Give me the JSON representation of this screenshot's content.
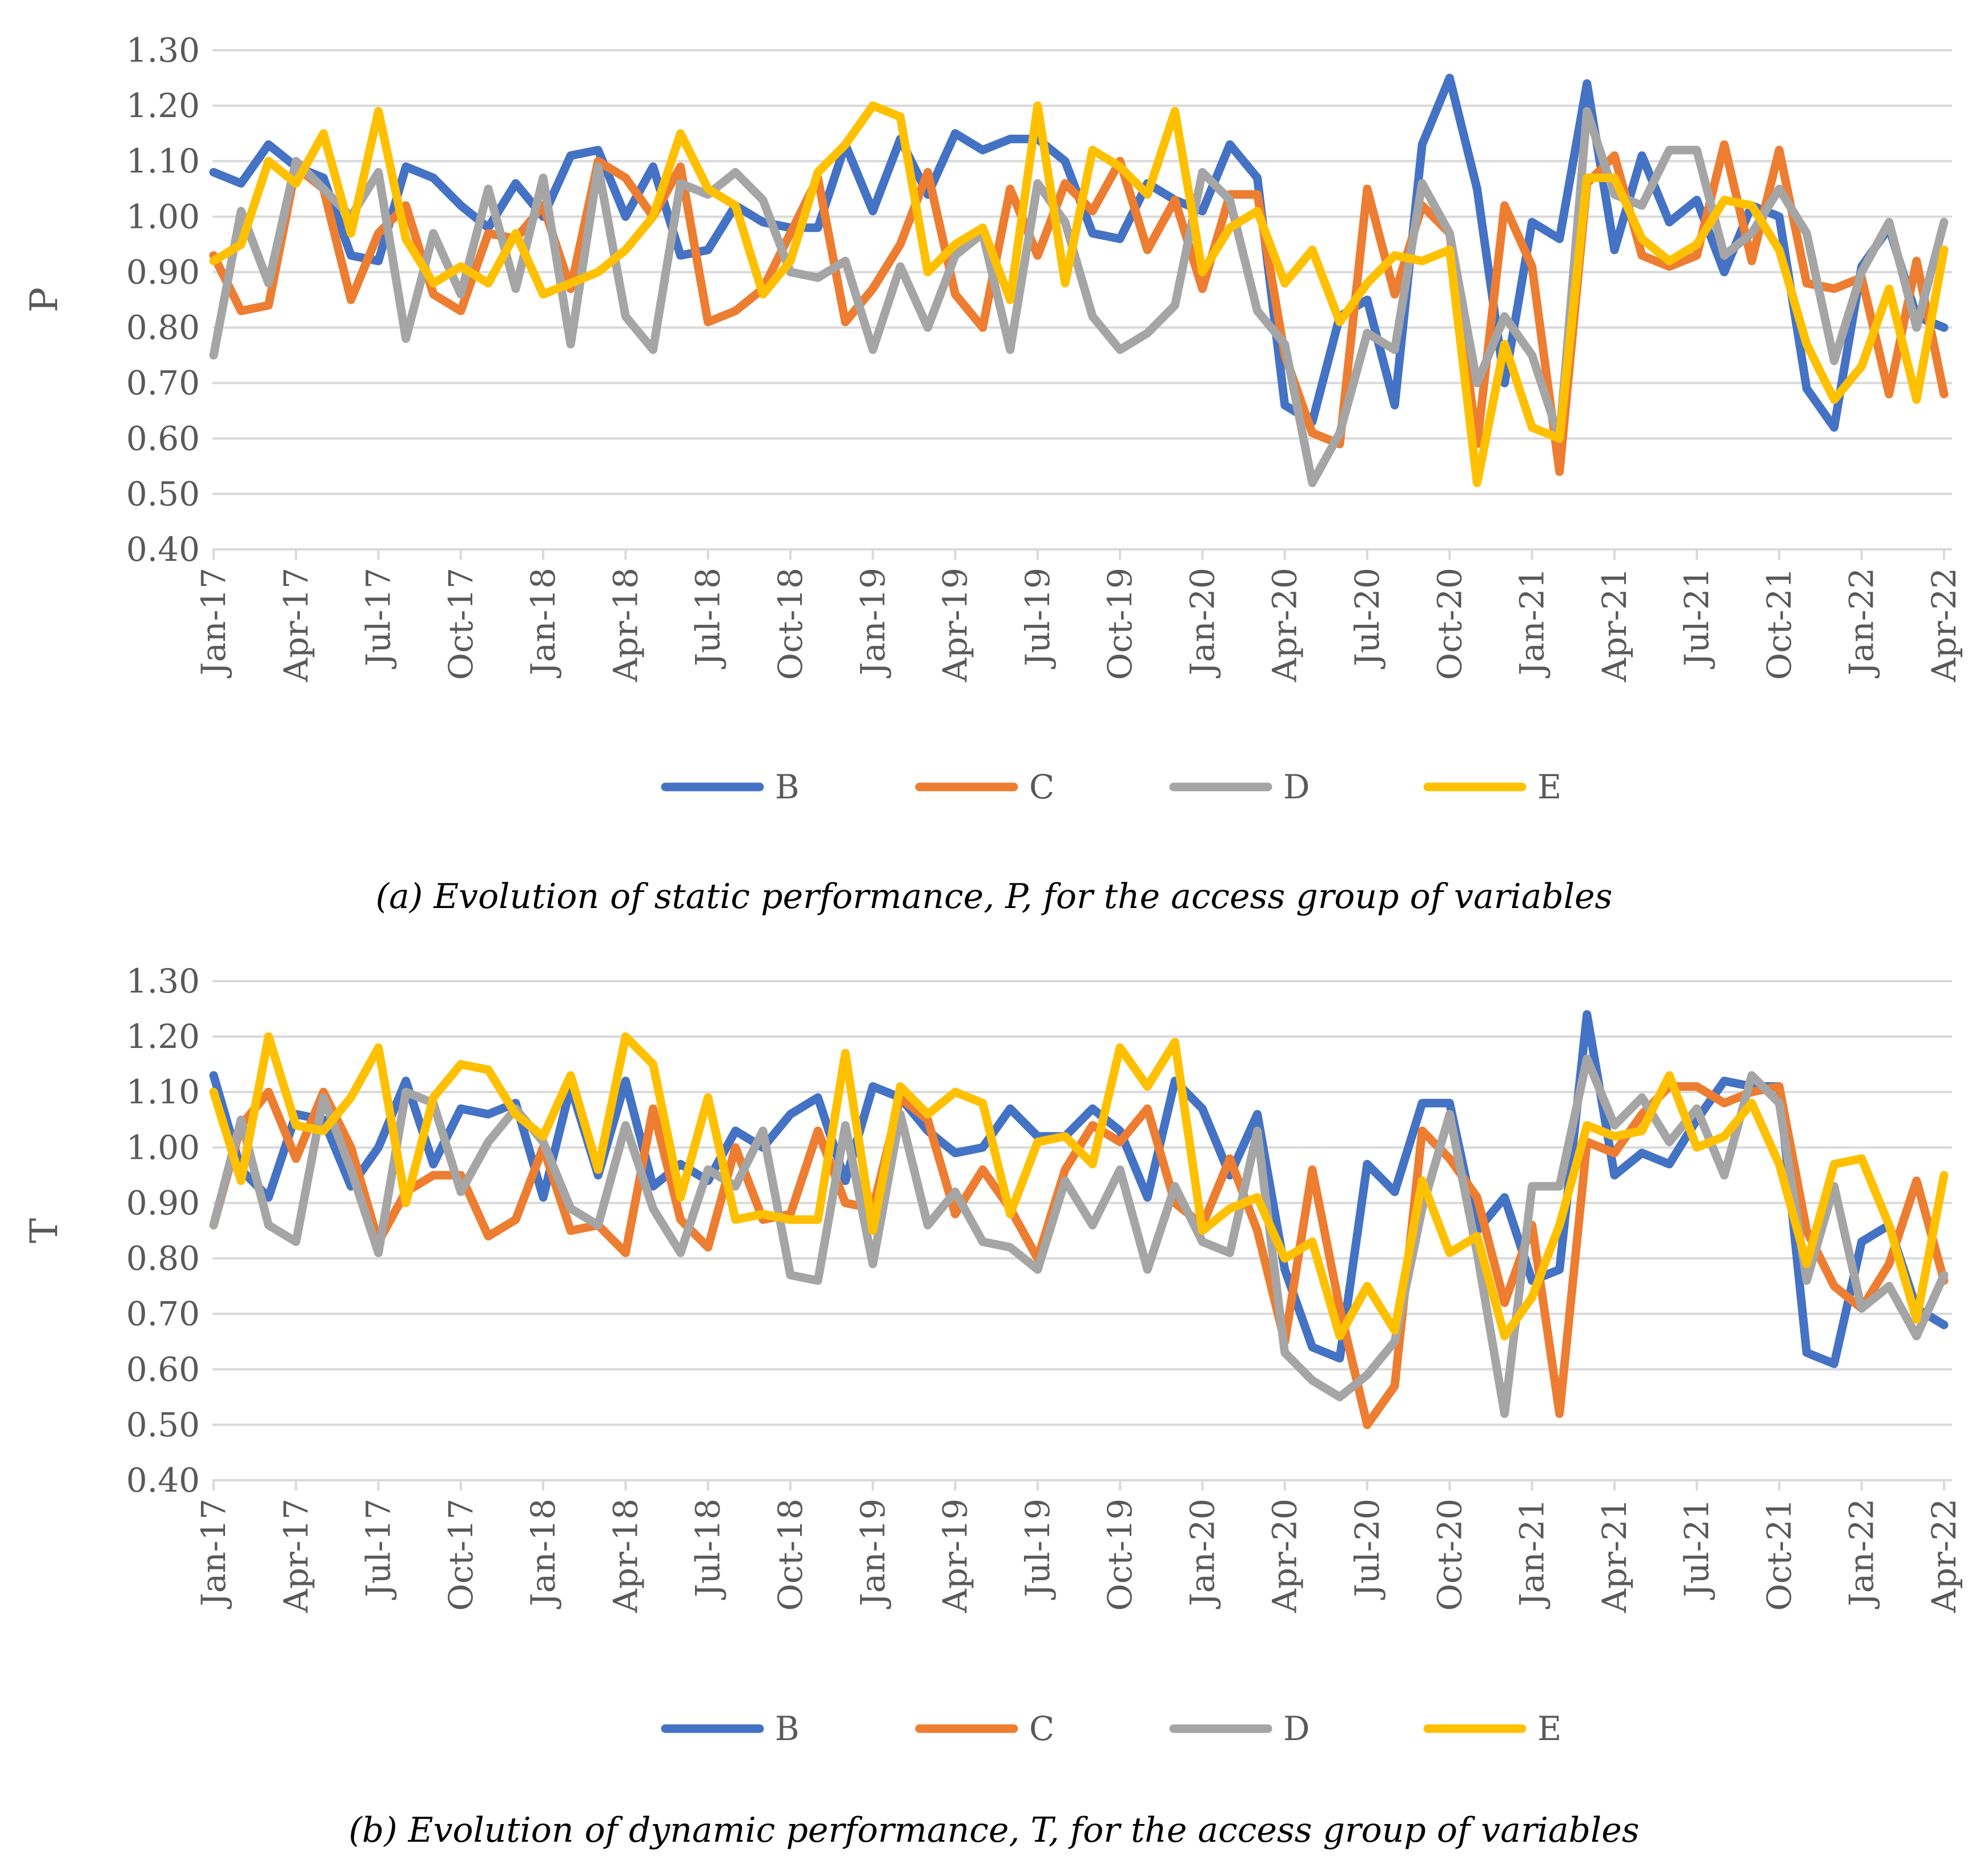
{
  "colors": {
    "B": "#4472C4",
    "C": "#ED7D31",
    "D": "#A5A5A5",
    "E": "#FFC000",
    "grid": "#D9D9D9",
    "text": "#595959"
  },
  "chart_data": [
    {
      "type": "line",
      "caption": "(a) Evolution of static performance, P, for the access group of variables",
      "ylabel": "P",
      "ylim": [
        0.4,
        1.3
      ],
      "yticks": [
        "0.40",
        "0.50",
        "0.60",
        "0.70",
        "0.80",
        "0.90",
        "1.00",
        "1.10",
        "1.20",
        "1.30"
      ],
      "x": [
        "Jan-17",
        "Feb-17",
        "Mar-17",
        "Apr-17",
        "May-17",
        "Jun-17",
        "Jul-17",
        "Aug-17",
        "Sep-17",
        "Oct-17",
        "Nov-17",
        "Dec-17",
        "Jan-18",
        "Feb-18",
        "Mar-18",
        "Apr-18",
        "May-18",
        "Jun-18",
        "Jul-18",
        "Aug-18",
        "Sep-18",
        "Oct-18",
        "Nov-18",
        "Dec-18",
        "Jan-19",
        "Feb-19",
        "Mar-19",
        "Apr-19",
        "May-19",
        "Jun-19",
        "Jul-19",
        "Aug-19",
        "Sep-19",
        "Oct-19",
        "Nov-19",
        "Dec-19",
        "Jan-20",
        "Feb-20",
        "Mar-20",
        "Apr-20",
        "May-20",
        "Jun-20",
        "Jul-20",
        "Aug-20",
        "Sep-20",
        "Oct-20",
        "Nov-20",
        "Dec-20",
        "Jan-21",
        "Feb-21",
        "Mar-21",
        "Apr-21",
        "May-21",
        "Jun-21",
        "Jul-21",
        "Aug-21",
        "Sep-21",
        "Oct-21",
        "Nov-21",
        "Dec-21",
        "Jan-22",
        "Feb-22",
        "Mar-22",
        "Apr-22"
      ],
      "xtick_labels": [
        "Jan-17",
        "Apr-17",
        "Jul-17",
        "Oct-17",
        "Jan-18",
        "Apr-18",
        "Jul-18",
        "Oct-18",
        "Jan-19",
        "Apr-19",
        "Jul-19",
        "Oct-19",
        "Jan-20",
        "Apr-20",
        "Jul-20",
        "Oct-20",
        "Jan-21",
        "Apr-21",
        "Jul-21",
        "Oct-21",
        "Jan-22",
        "Apr-22"
      ],
      "series": [
        {
          "name": "B",
          "values": [
            1.08,
            1.06,
            1.13,
            1.09,
            1.07,
            0.93,
            0.92,
            1.09,
            1.07,
            1.02,
            0.98,
            1.06,
            1.0,
            1.11,
            1.12,
            1.0,
            1.09,
            0.93,
            0.94,
            1.02,
            0.99,
            0.98,
            0.98,
            1.13,
            1.01,
            1.14,
            1.04,
            1.15,
            1.12,
            1.14,
            1.14,
            1.1,
            0.97,
            0.96,
            1.06,
            1.03,
            1.01,
            1.13,
            1.07,
            0.66,
            0.63,
            0.82,
            0.85,
            0.66,
            1.13,
            1.25,
            1.05,
            0.7,
            0.99,
            0.96,
            1.24,
            0.94,
            1.11,
            0.99,
            1.03,
            0.9,
            1.02,
            1.0,
            0.69,
            0.62,
            0.91,
            0.98,
            0.82,
            0.8
          ]
        },
        {
          "name": "C",
          "values": [
            0.93,
            0.83,
            0.84,
            1.09,
            1.05,
            0.85,
            0.97,
            1.02,
            0.86,
            0.83,
            0.97,
            0.96,
            1.02,
            0.87,
            1.1,
            1.07,
            1.0,
            1.09,
            0.81,
            0.83,
            0.87,
            0.97,
            1.07,
            0.81,
            0.87,
            0.95,
            1.08,
            0.86,
            0.8,
            1.05,
            0.93,
            1.06,
            1.01,
            1.1,
            0.94,
            1.03,
            0.87,
            1.04,
            1.04,
            0.75,
            0.61,
            0.59,
            1.05,
            0.86,
            1.02,
            0.97,
            0.59,
            1.02,
            0.91,
            0.54,
            1.06,
            1.11,
            0.93,
            0.91,
            0.93,
            1.13,
            0.92,
            1.12,
            0.88,
            0.87,
            0.89,
            0.68,
            0.92,
            0.68
          ]
        },
        {
          "name": "D",
          "values": [
            0.75,
            1.01,
            0.88,
            1.1,
            1.05,
            1.0,
            1.08,
            0.78,
            0.97,
            0.86,
            1.05,
            0.87,
            1.07,
            0.77,
            1.09,
            0.82,
            0.76,
            1.06,
            1.04,
            1.08,
            1.03,
            0.9,
            0.89,
            0.92,
            0.76,
            0.91,
            0.8,
            0.93,
            0.97,
            0.76,
            1.06,
            0.99,
            0.82,
            0.76,
            0.79,
            0.84,
            1.08,
            1.03,
            0.83,
            0.77,
            0.52,
            0.61,
            0.79,
            0.76,
            1.06,
            0.97,
            0.7,
            0.82,
            0.75,
            0.6,
            1.19,
            1.04,
            1.02,
            1.12,
            1.12,
            0.93,
            0.97,
            1.05,
            0.97,
            0.74,
            0.9,
            0.99,
            0.8,
            0.99
          ]
        },
        {
          "name": "E",
          "values": [
            0.92,
            0.95,
            1.1,
            1.06,
            1.15,
            0.97,
            1.19,
            0.96,
            0.88,
            0.91,
            0.88,
            0.97,
            0.86,
            0.88,
            0.9,
            0.94,
            1.0,
            1.15,
            1.05,
            1.02,
            0.86,
            0.92,
            1.08,
            1.13,
            1.2,
            1.18,
            0.9,
            0.95,
            0.98,
            0.85,
            1.2,
            0.88,
            1.12,
            1.09,
            1.04,
            1.19,
            0.9,
            0.98,
            1.01,
            0.88,
            0.94,
            0.81,
            0.88,
            0.93,
            0.92,
            0.94,
            0.52,
            0.77,
            0.62,
            0.6,
            1.07,
            1.07,
            0.96,
            0.92,
            0.95,
            1.03,
            1.02,
            0.94,
            0.77,
            0.67,
            0.73,
            0.87,
            0.67,
            0.94
          ]
        }
      ],
      "legend": [
        "B",
        "C",
        "D",
        "E"
      ],
      "legend_position": "bottom"
    },
    {
      "type": "line",
      "caption": "(b) Evolution of dynamic performance, T, for the access group of variables",
      "ylabel": "T",
      "ylim": [
        0.4,
        1.3
      ],
      "yticks": [
        "0.40",
        "0.50",
        "0.60",
        "0.70",
        "0.80",
        "0.90",
        "1.00",
        "1.10",
        "1.20",
        "1.30"
      ],
      "x": [
        "Jan-17",
        "Feb-17",
        "Mar-17",
        "Apr-17",
        "May-17",
        "Jun-17",
        "Jul-17",
        "Aug-17",
        "Sep-17",
        "Oct-17",
        "Nov-17",
        "Dec-17",
        "Jan-18",
        "Feb-18",
        "Mar-18",
        "Apr-18",
        "May-18",
        "Jun-18",
        "Jul-18",
        "Aug-18",
        "Sep-18",
        "Oct-18",
        "Nov-18",
        "Dec-18",
        "Jan-19",
        "Feb-19",
        "Mar-19",
        "Apr-19",
        "May-19",
        "Jun-19",
        "Jul-19",
        "Aug-19",
        "Sep-19",
        "Oct-19",
        "Nov-19",
        "Dec-19",
        "Jan-20",
        "Feb-20",
        "Mar-20",
        "Apr-20",
        "May-20",
        "Jun-20",
        "Jul-20",
        "Aug-20",
        "Sep-20",
        "Oct-20",
        "Nov-20",
        "Dec-20",
        "Jan-21",
        "Feb-21",
        "Mar-21",
        "Apr-21",
        "May-21",
        "Jun-21",
        "Jul-21",
        "Aug-21",
        "Sep-21",
        "Oct-21",
        "Nov-21",
        "Dec-21",
        "Jan-22",
        "Feb-22",
        "Mar-22",
        "Apr-22"
      ],
      "xtick_labels": [
        "Jan-17",
        "Apr-17",
        "Jul-17",
        "Oct-17",
        "Jan-18",
        "Apr-18",
        "Jul-18",
        "Oct-18",
        "Jan-19",
        "Apr-19",
        "Jul-19",
        "Oct-19",
        "Jan-20",
        "Apr-20",
        "Jul-20",
        "Oct-20",
        "Jan-21",
        "Apr-21",
        "Jul-21",
        "Oct-21",
        "Jan-22",
        "Apr-22"
      ],
      "series": [
        {
          "name": "B",
          "values": [
            1.13,
            0.96,
            0.91,
            1.06,
            1.05,
            0.93,
            1.0,
            1.12,
            0.97,
            1.07,
            1.06,
            1.08,
            0.91,
            1.11,
            0.95,
            1.12,
            0.93,
            0.97,
            0.94,
            1.03,
            1.0,
            1.06,
            1.09,
            0.94,
            1.11,
            1.09,
            1.03,
            0.99,
            1.0,
            1.07,
            1.02,
            1.02,
            1.07,
            1.03,
            0.91,
            1.12,
            1.07,
            0.95,
            1.06,
            0.78,
            0.64,
            0.62,
            0.97,
            0.92,
            1.08,
            1.08,
            0.85,
            0.91,
            0.76,
            0.78,
            1.24,
            0.95,
            0.99,
            0.97,
            1.05,
            1.12,
            1.11,
            1.11,
            0.63,
            0.61,
            0.83,
            0.86,
            0.71,
            0.68
          ]
        },
        {
          "name": "C",
          "values": [
            0.86,
            1.04,
            1.1,
            0.98,
            1.1,
            1.0,
            0.83,
            0.92,
            0.95,
            0.95,
            0.84,
            0.87,
            1.0,
            0.85,
            0.86,
            0.81,
            1.07,
            0.87,
            0.82,
            1.0,
            0.87,
            0.88,
            1.03,
            0.9,
            0.89,
            1.09,
            1.05,
            0.88,
            0.96,
            0.89,
            0.8,
            0.96,
            1.04,
            1.01,
            1.07,
            0.9,
            0.86,
            0.98,
            0.85,
            0.65,
            0.96,
            0.71,
            0.5,
            0.57,
            1.03,
            0.98,
            0.91,
            0.72,
            0.86,
            0.52,
            1.01,
            0.99,
            1.06,
            1.11,
            1.11,
            1.08,
            1.1,
            1.11,
            0.85,
            0.75,
            0.71,
            0.79,
            0.94,
            0.76
          ]
        },
        {
          "name": "D",
          "values": [
            0.86,
            1.05,
            0.86,
            0.83,
            1.09,
            0.96,
            0.81,
            1.1,
            1.08,
            0.92,
            1.01,
            1.07,
            1.01,
            0.89,
            0.86,
            1.04,
            0.89,
            0.81,
            0.96,
            0.93,
            1.03,
            0.77,
            0.76,
            1.04,
            0.79,
            1.06,
            0.86,
            0.92,
            0.83,
            0.82,
            0.78,
            0.94,
            0.86,
            0.96,
            0.78,
            0.93,
            0.83,
            0.81,
            1.03,
            0.63,
            0.58,
            0.55,
            0.59,
            0.65,
            0.89,
            1.06,
            0.81,
            0.52,
            0.93,
            0.93,
            1.16,
            1.04,
            1.09,
            1.01,
            1.07,
            0.95,
            1.13,
            1.08,
            0.76,
            0.93,
            0.71,
            0.75,
            0.66,
            0.77
          ]
        },
        {
          "name": "E",
          "values": [
            1.1,
            0.94,
            1.2,
            1.04,
            1.03,
            1.09,
            1.18,
            0.9,
            1.09,
            1.15,
            1.14,
            1.06,
            1.02,
            1.13,
            0.96,
            1.2,
            1.15,
            0.91,
            1.09,
            0.87,
            0.88,
            0.87,
            0.87,
            1.17,
            0.85,
            1.11,
            1.06,
            1.1,
            1.08,
            0.88,
            1.01,
            1.02,
            0.97,
            1.18,
            1.11,
            1.19,
            0.85,
            0.89,
            0.91,
            0.8,
            0.83,
            0.66,
            0.75,
            0.67,
            0.94,
            0.81,
            0.84,
            0.66,
            0.73,
            0.86,
            1.04,
            1.02,
            1.03,
            1.13,
            1.0,
            1.02,
            1.08,
            0.97,
            0.79,
            0.97,
            0.98,
            0.86,
            0.69,
            0.95
          ]
        }
      ],
      "legend": [
        "B",
        "C",
        "D",
        "E"
      ],
      "legend_position": "bottom"
    }
  ]
}
